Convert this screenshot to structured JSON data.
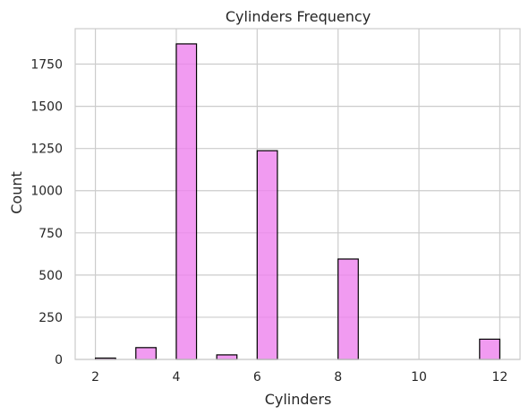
{
  "chart_data": {
    "type": "bar",
    "title": "Cylinders Frequency",
    "xlabel": "Cylinders",
    "ylabel": "Count",
    "xlim": [
      1.5,
      12.5
    ],
    "ylim": [
      0,
      1960
    ],
    "x_ticks": [
      2,
      4,
      6,
      8,
      10,
      12
    ],
    "y_ticks": [
      0,
      250,
      500,
      750,
      1000,
      1250,
      1500,
      1750
    ],
    "grid": true,
    "legend": "none",
    "bin_width": 0.5,
    "bars": [
      {
        "x_start": 2.0,
        "x_end": 2.5,
        "value": 8
      },
      {
        "x_start": 3.0,
        "x_end": 3.5,
        "value": 70
      },
      {
        "x_start": 4.0,
        "x_end": 4.5,
        "value": 1870
      },
      {
        "x_start": 5.0,
        "x_end": 5.5,
        "value": 27
      },
      {
        "x_start": 6.0,
        "x_end": 6.5,
        "value": 1237
      },
      {
        "x_start": 8.0,
        "x_end": 8.5,
        "value": 595
      },
      {
        "x_start": 11.5,
        "x_end": 12.0,
        "value": 120
      }
    ],
    "colors": {
      "bar_fill": "#ee82ee",
      "bar_opacity": 0.8,
      "bar_edge": "#000000",
      "grid": "#cccccc",
      "text": "#262626"
    }
  }
}
